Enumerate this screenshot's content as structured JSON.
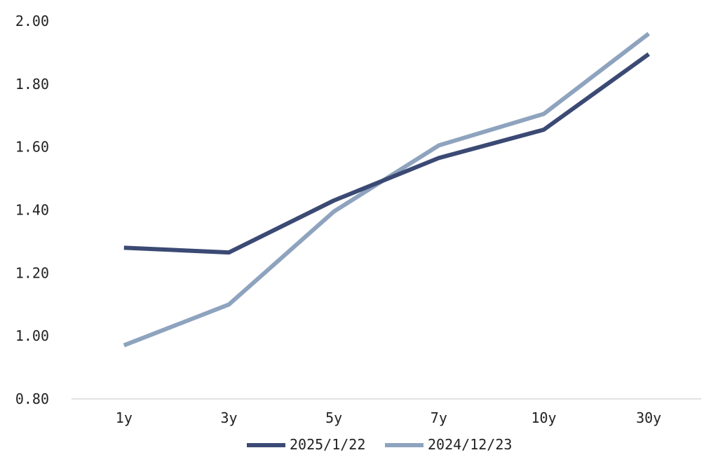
{
  "chart_data": {
    "type": "line",
    "categories": [
      "1y",
      "3y",
      "5y",
      "7y",
      "10y",
      "30y"
    ],
    "ylim": [
      0.8,
      2.0
    ],
    "yticks": [
      "0.80",
      "1.00",
      "1.20",
      "1.40",
      "1.60",
      "1.80",
      "2.00"
    ],
    "ytick_values": [
      0.8,
      1.0,
      1.2,
      1.4,
      1.6,
      1.8,
      2.0
    ],
    "grid": false,
    "legend_position": "bottom",
    "series": [
      {
        "name": "2025/1/22",
        "color": "#3b4a74",
        "values": [
          1.28,
          1.265,
          1.43,
          1.565,
          1.655,
          1.895
        ]
      },
      {
        "name": "2024/12/23",
        "color": "#8ea3be",
        "values": [
          0.97,
          1.1,
          1.395,
          1.605,
          1.705,
          1.96
        ]
      }
    ]
  }
}
